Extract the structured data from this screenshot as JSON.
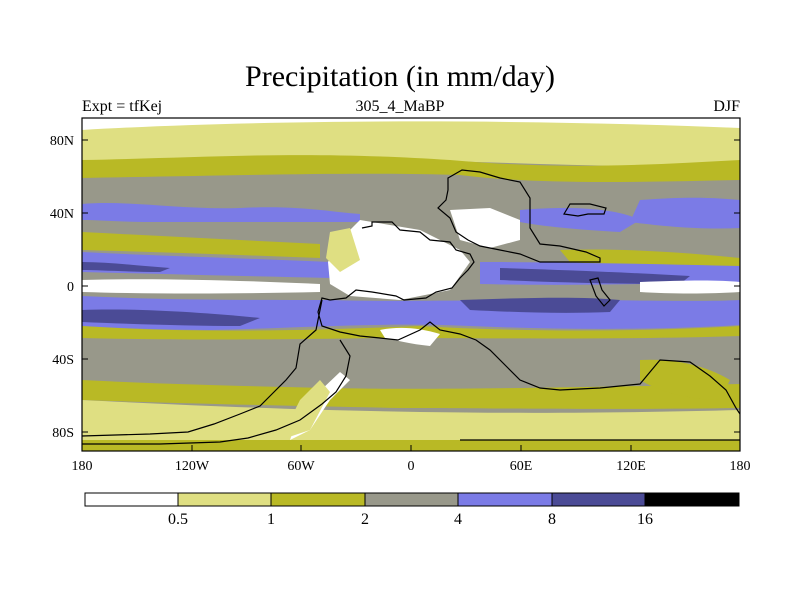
{
  "title": "Precipitation (in mm/day)",
  "subtitle": {
    "left": "Expt = tfKej",
    "center": "305_4_MaBP",
    "right": "DJF"
  },
  "axes": {
    "x_ticks": [
      "180",
      "120W",
      "60W",
      "0",
      "60E",
      "120E",
      "180"
    ],
    "y_ticks": [
      "80N",
      "40N",
      "0",
      "40S",
      "80S"
    ]
  },
  "colorbar": {
    "labels": [
      "0.5",
      "1",
      "2",
      "4",
      "8",
      "16"
    ],
    "colors": [
      "#ffffff",
      "#dfdf82",
      "#b9b925",
      "#98988a",
      "#7b7be6",
      "#4b4b96",
      "#000000"
    ]
  },
  "palette": {
    "white": "#ffffff",
    "light_yellow": "#dfdf82",
    "olive": "#b9b925",
    "gray": "#98988a",
    "blue": "#7b7be6",
    "dark_blue": "#4b4b96",
    "black": "#000000"
  }
}
